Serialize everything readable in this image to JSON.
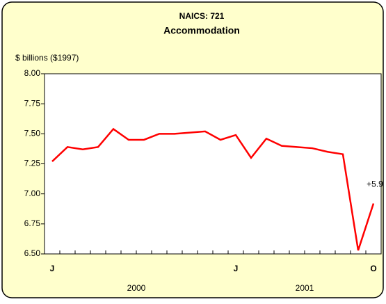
{
  "chart_data": {
    "type": "line",
    "title": "NAICS: 721",
    "subtitle": "Accommodation",
    "y_label": "$ billions ($1997)",
    "categories": [
      "J",
      null,
      null,
      null,
      null,
      null,
      null,
      null,
      null,
      null,
      null,
      null,
      "J",
      null,
      null,
      null,
      null,
      null,
      null,
      null,
      null,
      "O"
    ],
    "groups": [
      "2000",
      "2001"
    ],
    "series": [
      {
        "name": "Accommodation",
        "color": "#ff0000",
        "values": [
          7.27,
          7.39,
          7.37,
          7.39,
          7.54,
          7.45,
          7.45,
          7.5,
          7.5,
          7.51,
          7.52,
          7.45,
          7.49,
          7.3,
          7.46,
          7.4,
          7.39,
          7.38,
          7.35,
          7.33,
          6.53,
          6.92
        ]
      }
    ],
    "annotation": "+5.9",
    "ylim": [
      6.5,
      8.0
    ],
    "yticks": [
      {
        "value": 6.5,
        "label": "6.50"
      },
      {
        "value": 6.75,
        "label": "6.75"
      },
      {
        "value": 7.0,
        "label": "7.00"
      },
      {
        "value": 7.25,
        "label": "7.25"
      },
      {
        "value": 7.5,
        "label": "7.50"
      },
      {
        "value": 7.75,
        "label": "7.75"
      },
      {
        "value": 8.0,
        "label": "8.00"
      }
    ]
  }
}
